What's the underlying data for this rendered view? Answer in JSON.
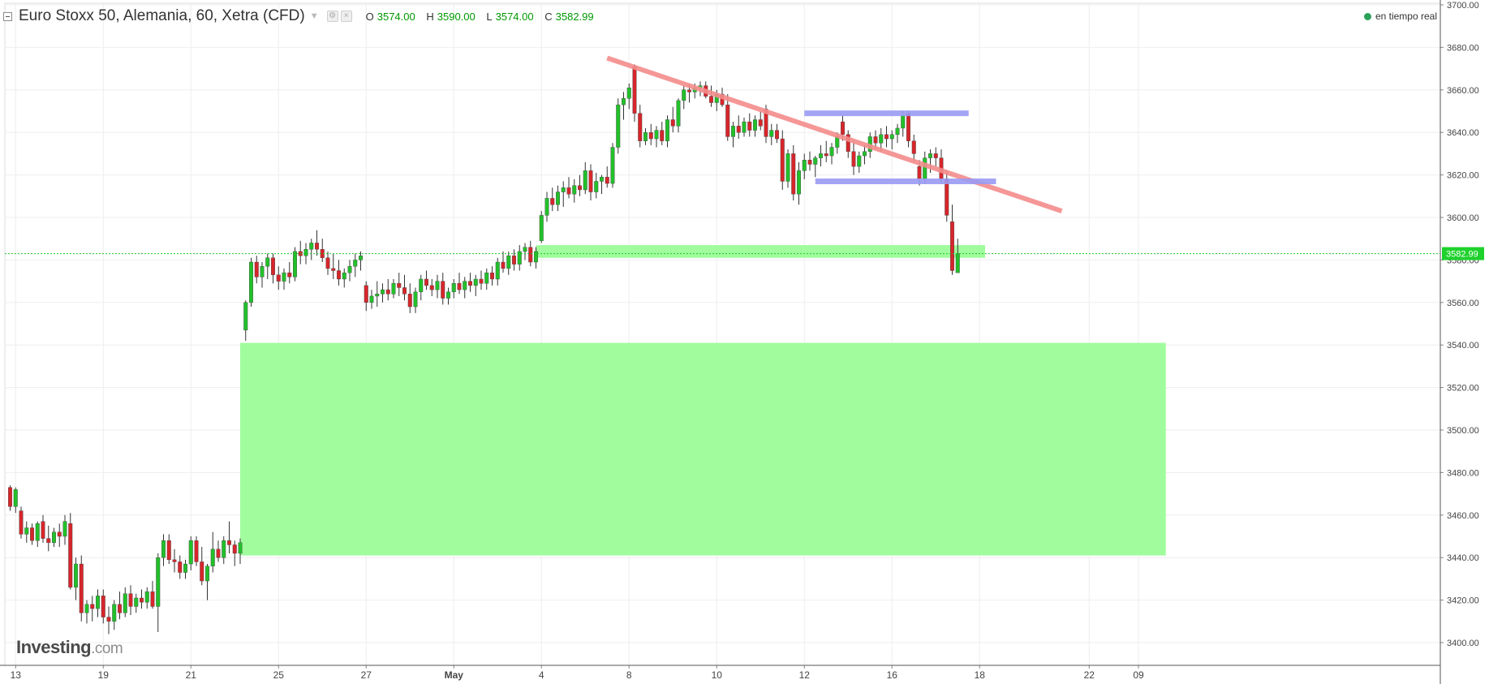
{
  "header": {
    "symbol": "Euro Stoxx 50, Alemania, 60, Xetra (CFD)",
    "ohlc": [
      {
        "key": "O",
        "value": "3574.00"
      },
      {
        "key": "H",
        "value": "3590.00"
      },
      {
        "key": "L",
        "value": "3574.00"
      },
      {
        "key": "C",
        "value": "3582.99"
      }
    ],
    "realtime": "en tiempo real"
  },
  "logo": {
    "name": "Investing",
    "suffix": ".com"
  },
  "colors": {
    "up": "#22c02a",
    "down": "#d6262b",
    "grid": "#eeeeee",
    "support_zone": "#9bfc98",
    "trendline": "#f48c8c",
    "range_line": "#9b9bf4",
    "current_line": "#1ec82a",
    "price_label_bg": "#1ed12c"
  },
  "chart_data": {
    "type": "candlestick",
    "title": "Euro Stoxx 50, Alemania, 60, Xetra (CFD)",
    "interval": "60",
    "y_axis": {
      "min": 3395,
      "max": 3700,
      "ticks": [
        "3700.00",
        "3680.00",
        "3660.00",
        "3640.00",
        "3620.00",
        "3600.00",
        "3580.00",
        "3560.00",
        "3540.00",
        "3520.00",
        "3500.00",
        "3480.00",
        "3460.00",
        "3440.00",
        "3420.00",
        "3400.00"
      ]
    },
    "x_axis": {
      "ticks": [
        {
          "label": "13",
          "i": 1
        },
        {
          "label": "19",
          "i": 17
        },
        {
          "label": "21",
          "i": 33
        },
        {
          "label": "25",
          "i": 49
        },
        {
          "label": "27",
          "i": 65
        },
        {
          "label": "May",
          "i": 81
        },
        {
          "label": "4",
          "i": 97
        },
        {
          "label": "8",
          "i": 113
        },
        {
          "label": "10",
          "i": 129
        },
        {
          "label": "12",
          "i": 145
        },
        {
          "label": "16",
          "i": 161
        },
        {
          "label": "18",
          "i": 177
        },
        {
          "label": "22",
          "i": 197
        },
        {
          "label": "09",
          "i": 206
        }
      ]
    },
    "last_price": 3582.99,
    "last_price_label": "3582.99",
    "grid": true,
    "annotations": [
      {
        "type": "zone",
        "from_i": 42,
        "to_i": 211,
        "low": 3441,
        "high": 3541
      },
      {
        "type": "zone",
        "from_i": 96,
        "to_i": 178,
        "low": 3581,
        "high": 3587
      },
      {
        "type": "trendline",
        "from_i": 109,
        "from_price": 3675,
        "to_i": 192,
        "to_price": 3603
      },
      {
        "type": "hline",
        "from_i": 145,
        "to_i": 175,
        "price": 3649
      },
      {
        "type": "hline",
        "from_i": 147,
        "to_i": 180,
        "price": 3617
      }
    ],
    "candles": [
      [
        3473,
        3474,
        3462,
        3464
      ],
      [
        3464,
        3473,
        3461,
        3472
      ],
      [
        3462,
        3464,
        3449,
        3451
      ],
      [
        3451,
        3457,
        3447,
        3454
      ],
      [
        3454,
        3456,
        3446,
        3448
      ],
      [
        3448,
        3457,
        3445,
        3456
      ],
      [
        3457,
        3460,
        3447,
        3449
      ],
      [
        3449,
        3455,
        3443,
        3447
      ],
      [
        3447,
        3454,
        3445,
        3452
      ],
      [
        3452,
        3456,
        3445,
        3450
      ],
      [
        3450,
        3460,
        3446,
        3457
      ],
      [
        3456,
        3461,
        3425,
        3426
      ],
      [
        3426,
        3440,
        3420,
        3437
      ],
      [
        3437,
        3441,
        3410,
        3414
      ],
      [
        3414,
        3420,
        3409,
        3418
      ],
      [
        3418,
        3422,
        3410,
        3416
      ],
      [
        3416,
        3425,
        3412,
        3422
      ],
      [
        3422,
        3425,
        3409,
        3412
      ],
      [
        3412,
        3417,
        3404,
        3410
      ],
      [
        3410,
        3420,
        3406,
        3418
      ],
      [
        3418,
        3424,
        3411,
        3414
      ],
      [
        3414,
        3426,
        3412,
        3423
      ],
      [
        3423,
        3427,
        3413,
        3417
      ],
      [
        3417,
        3423,
        3414,
        3421
      ],
      [
        3421,
        3425,
        3416,
        3419
      ],
      [
        3419,
        3426,
        3416,
        3424
      ],
      [
        3424,
        3429,
        3416,
        3417
      ],
      [
        3417,
        3442,
        3405,
        3440
      ],
      [
        3440,
        3451,
        3436,
        3448
      ],
      [
        3448,
        3451,
        3437,
        3439
      ],
      [
        3439,
        3444,
        3433,
        3438
      ],
      [
        3438,
        3441,
        3430,
        3433
      ],
      [
        3433,
        3439,
        3430,
        3437
      ],
      [
        3437,
        3450,
        3434,
        3448
      ],
      [
        3448,
        3450,
        3436,
        3438
      ],
      [
        3438,
        3445,
        3427,
        3429
      ],
      [
        3429,
        3437,
        3420,
        3436
      ],
      [
        3436,
        3452,
        3433,
        3444
      ],
      [
        3444,
        3448,
        3438,
        3440
      ],
      [
        3440,
        3450,
        3437,
        3448
      ],
      [
        3448,
        3457,
        3442,
        3446
      ],
      [
        3446,
        3448,
        3436,
        3442
      ],
      [
        3442,
        3449,
        3437,
        3447
      ],
      [
        3547,
        3561,
        3542,
        3560
      ],
      [
        3560,
        3581,
        3558,
        3579
      ],
      [
        3579,
        3582,
        3569,
        3572
      ],
      [
        3572,
        3579,
        3567,
        3577
      ],
      [
        3577,
        3583,
        3571,
        3581
      ],
      [
        3581,
        3583,
        3569,
        3573
      ],
      [
        3573,
        3577,
        3566,
        3570
      ],
      [
        3570,
        3576,
        3566,
        3574
      ],
      [
        3574,
        3579,
        3569,
        3572
      ],
      [
        3572,
        3586,
        3570,
        3584
      ],
      [
        3584,
        3589,
        3578,
        3582
      ],
      [
        3582,
        3588,
        3578,
        3585
      ],
      [
        3585,
        3590,
        3580,
        3588
      ],
      [
        3588,
        3594,
        3582,
        3585
      ],
      [
        3585,
        3590,
        3579,
        3581
      ],
      [
        3581,
        3584,
        3573,
        3576
      ],
      [
        3576,
        3583,
        3571,
        3575
      ],
      [
        3575,
        3580,
        3568,
        3571
      ],
      [
        3571,
        3576,
        3567,
        3574
      ],
      [
        3574,
        3580,
        3570,
        3577
      ],
      [
        3577,
        3583,
        3572,
        3580
      ],
      [
        3580,
        3584,
        3575,
        3582
      ],
      [
        3568,
        3570,
        3556,
        3560
      ],
      [
        3560,
        3566,
        3557,
        3563
      ],
      [
        3563,
        3570,
        3558,
        3564
      ],
      [
        3564,
        3569,
        3560,
        3566
      ],
      [
        3566,
        3571,
        3561,
        3564
      ],
      [
        3564,
        3571,
        3562,
        3569
      ],
      [
        3569,
        3574,
        3563,
        3567
      ],
      [
        3567,
        3573,
        3561,
        3564
      ],
      [
        3564,
        3569,
        3555,
        3558
      ],
      [
        3558,
        3567,
        3555,
        3565
      ],
      [
        3565,
        3573,
        3561,
        3571
      ],
      [
        3571,
        3575,
        3566,
        3568
      ],
      [
        3568,
        3571,
        3563,
        3566
      ],
      [
        3566,
        3573,
        3562,
        3570
      ],
      [
        3570,
        3574,
        3559,
        3562
      ],
      [
        3562,
        3567,
        3559,
        3565
      ],
      [
        3565,
        3571,
        3562,
        3569
      ],
      [
        3569,
        3574,
        3564,
        3566
      ],
      [
        3566,
        3572,
        3562,
        3570
      ],
      [
        3570,
        3574,
        3565,
        3568
      ],
      [
        3568,
        3573,
        3563,
        3571
      ],
      [
        3571,
        3575,
        3566,
        3569
      ],
      [
        3569,
        3576,
        3566,
        3574
      ],
      [
        3574,
        3577,
        3568,
        3571
      ],
      [
        3571,
        3581,
        3568,
        3579
      ],
      [
        3579,
        3584,
        3574,
        3576
      ],
      [
        3576,
        3584,
        3573,
        3582
      ],
      [
        3582,
        3585,
        3575,
        3578
      ],
      [
        3578,
        3587,
        3575,
        3584
      ],
      [
        3584,
        3588,
        3580,
        3586
      ],
      [
        3586,
        3589,
        3577,
        3579
      ],
      [
        3579,
        3586,
        3576,
        3584
      ],
      [
        3589,
        3603,
        3588,
        3601
      ],
      [
        3601,
        3612,
        3598,
        3609
      ],
      [
        3609,
        3614,
        3603,
        3606
      ],
      [
        3606,
        3615,
        3603,
        3612
      ],
      [
        3612,
        3617,
        3605,
        3614
      ],
      [
        3614,
        3619,
        3609,
        3611
      ],
      [
        3611,
        3618,
        3607,
        3615
      ],
      [
        3615,
        3620,
        3610,
        3613
      ],
      [
        3613,
        3626,
        3611,
        3622
      ],
      [
        3622,
        3625,
        3608,
        3612
      ],
      [
        3612,
        3621,
        3609,
        3617
      ],
      [
        3617,
        3620,
        3611,
        3619
      ],
      [
        3619,
        3624,
        3614,
        3616
      ],
      [
        3616,
        3635,
        3614,
        3633
      ],
      [
        3633,
        3656,
        3630,
        3653
      ],
      [
        3653,
        3659,
        3646,
        3656
      ],
      [
        3656,
        3663,
        3651,
        3661
      ],
      [
        3671,
        3672,
        3645,
        3649
      ],
      [
        3649,
        3653,
        3633,
        3636
      ],
      [
        3636,
        3642,
        3634,
        3640
      ],
      [
        3640,
        3644,
        3634,
        3637
      ],
      [
        3637,
        3643,
        3633,
        3641
      ],
      [
        3641,
        3645,
        3634,
        3636
      ],
      [
        3636,
        3648,
        3633,
        3646
      ],
      [
        3646,
        3652,
        3640,
        3643
      ],
      [
        3643,
        3656,
        3640,
        3655
      ],
      [
        3655,
        3662,
        3651,
        3660
      ],
      [
        3660,
        3663,
        3654,
        3659
      ],
      [
        3659,
        3663,
        3656,
        3661
      ],
      [
        3661,
        3664,
        3657,
        3662
      ],
      [
        3662,
        3664,
        3656,
        3657
      ],
      [
        3657,
        3662,
        3652,
        3654
      ],
      [
        3654,
        3660,
        3650,
        3658
      ],
      [
        3658,
        3661,
        3652,
        3653
      ],
      [
        3653,
        3658,
        3636,
        3638
      ],
      [
        3638,
        3645,
        3633,
        3643
      ],
      [
        3643,
        3648,
        3637,
        3640
      ],
      [
        3640,
        3647,
        3638,
        3645
      ],
      [
        3645,
        3649,
        3638,
        3641
      ],
      [
        3641,
        3648,
        3638,
        3646
      ],
      [
        3646,
        3650,
        3641,
        3643
      ],
      [
        3651,
        3653,
        3635,
        3638
      ],
      [
        3638,
        3644,
        3634,
        3641
      ],
      [
        3641,
        3644,
        3635,
        3637
      ],
      [
        3637,
        3641,
        3613,
        3617
      ],
      [
        3617,
        3632,
        3614,
        3630
      ],
      [
        3630,
        3634,
        3608,
        3611
      ],
      [
        3611,
        3626,
        3606,
        3622
      ],
      [
        3622,
        3630,
        3618,
        3627
      ],
      [
        3627,
        3631,
        3622,
        3625
      ],
      [
        3625,
        3629,
        3619,
        3628
      ],
      [
        3628,
        3634,
        3624,
        3630
      ],
      [
        3630,
        3636,
        3626,
        3629
      ],
      [
        3629,
        3635,
        3625,
        3633
      ],
      [
        3633,
        3640,
        3630,
        3638
      ],
      [
        3645,
        3648,
        3636,
        3639
      ],
      [
        3639,
        3641,
        3628,
        3631
      ],
      [
        3631,
        3636,
        3620,
        3624
      ],
      [
        3624,
        3631,
        3621,
        3629
      ],
      [
        3629,
        3634,
        3625,
        3631
      ],
      [
        3631,
        3640,
        3628,
        3638
      ],
      [
        3638,
        3641,
        3632,
        3635
      ],
      [
        3635,
        3642,
        3631,
        3639
      ],
      [
        3639,
        3643,
        3633,
        3637
      ],
      [
        3637,
        3641,
        3632,
        3639
      ],
      [
        3639,
        3644,
        3635,
        3642
      ],
      [
        3642,
        3650,
        3638,
        3648
      ],
      [
        3649,
        3650,
        3633,
        3636
      ],
      [
        3636,
        3639,
        3626,
        3630
      ],
      [
        3624,
        3627,
        3615,
        3618
      ],
      [
        3618,
        3631,
        3616,
        3628
      ],
      [
        3628,
        3632,
        3621,
        3630
      ],
      [
        3630,
        3633,
        3624,
        3628
      ],
      [
        3628,
        3632,
        3616,
        3618
      ],
      [
        3618,
        3622,
        3598,
        3601
      ],
      [
        3598,
        3606,
        3573,
        3575
      ],
      [
        3574,
        3590,
        3574,
        3583
      ]
    ]
  }
}
